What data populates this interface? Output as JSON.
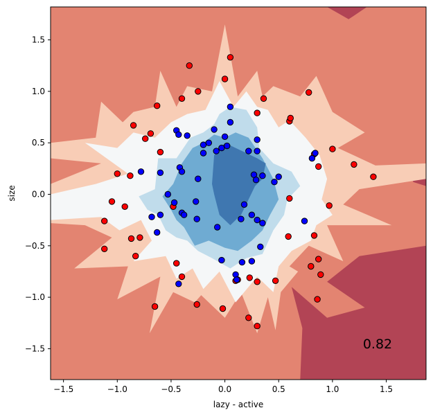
{
  "chart_data": {
    "type": "scatter",
    "title": "",
    "xlabel": "lazy - active",
    "ylabel": "size",
    "xlim": [
      -1.62,
      1.87
    ],
    "ylim": [
      -1.8,
      1.82
    ],
    "x_ticks": [
      -1.5,
      -1.0,
      -0.5,
      0.0,
      0.5,
      1.0,
      1.5
    ],
    "x_tick_labels": [
      "−1.5",
      "−1.0",
      "−0.5",
      "0.0",
      "0.5",
      "1.0",
      "1.5"
    ],
    "y_ticks": [
      -1.5,
      -1.0,
      -0.5,
      0.0,
      0.5,
      1.0,
      1.5
    ],
    "y_tick_labels": [
      "−1.5",
      "−1.0",
      "−0.5",
      "0.0",
      "0.5",
      "1.0",
      "1.5"
    ],
    "grid": false,
    "legend": "none",
    "score": "0.82",
    "colors": {
      "background_red": "#e38471",
      "mid_red": "#f8cdb6",
      "neutral": "#f5f7f8",
      "light_blue": "#c0dceb",
      "mid_blue": "#6fabd2",
      "dark_blue": "#3f77b0",
      "dark_red": "#b24455",
      "class_a": "#ff0000",
      "class_b": "#0000ff"
    },
    "regions": {
      "dark_red": [
        [
          [
            0.7,
            -1.8
          ],
          [
            0.72,
            -1.3
          ],
          [
            0.62,
            -0.9
          ],
          [
            0.95,
            -1.2
          ],
          [
            1.3,
            -1.1
          ],
          [
            0.95,
            -0.85
          ],
          [
            1.25,
            -0.6
          ],
          [
            1.87,
            -0.5
          ],
          [
            1.87,
            -1.8
          ]
        ],
        [
          [
            0.95,
            1.82
          ],
          [
            1.15,
            1.7
          ],
          [
            1.32,
            1.82
          ]
        ],
        [
          [
            1.72,
            0.25
          ],
          [
            1.87,
            0.2
          ],
          [
            1.87,
            0.08
          ],
          [
            1.75,
            0.12
          ]
        ]
      ],
      "mid_red": [
        [
          [
            -1.62,
            0.1
          ],
          [
            -1.62,
            -0.28
          ],
          [
            -1.3,
            -0.3
          ],
          [
            -1.05,
            -0.42
          ],
          [
            -1.4,
            -0.72
          ],
          [
            -0.9,
            -0.7
          ],
          [
            -1.0,
            -1.02
          ],
          [
            -0.6,
            -0.8
          ],
          [
            -0.7,
            -1.35
          ],
          [
            -0.48,
            -0.95
          ],
          [
            -0.28,
            -1.05
          ],
          [
            -0.22,
            -0.98
          ],
          [
            0.0,
            -1.2
          ],
          [
            0.15,
            -0.95
          ],
          [
            0.3,
            -1.35
          ],
          [
            0.4,
            -1.0
          ],
          [
            0.47,
            -1.32
          ],
          [
            0.52,
            -0.95
          ],
          [
            0.68,
            -0.75
          ],
          [
            0.6,
            -0.7
          ],
          [
            0.78,
            -0.5
          ],
          [
            1.1,
            -0.65
          ],
          [
            0.95,
            -0.3
          ],
          [
            1.55,
            -0.3
          ],
          [
            1.1,
            -0.1
          ],
          [
            1.25,
            0.05
          ],
          [
            1.87,
            0.15
          ],
          [
            1.87,
            0.3
          ],
          [
            1.4,
            0.28
          ],
          [
            1.05,
            0.45
          ],
          [
            1.3,
            0.6
          ],
          [
            1.0,
            0.8
          ],
          [
            0.85,
            1.15
          ],
          [
            0.7,
            0.95
          ],
          [
            0.45,
            1.05
          ],
          [
            0.35,
            0.95
          ],
          [
            0.3,
            1.2
          ],
          [
            0.12,
            0.95
          ],
          [
            0.0,
            1.65
          ],
          [
            -0.12,
            1.0
          ],
          [
            -0.35,
            1.05
          ],
          [
            -0.45,
            0.85
          ],
          [
            -0.6,
            1.2
          ],
          [
            -0.65,
            0.85
          ],
          [
            -0.85,
            0.8
          ],
          [
            -0.95,
            0.7
          ],
          [
            -1.15,
            0.9
          ],
          [
            -1.2,
            0.55
          ],
          [
            -1.62,
            0.5
          ],
          [
            -1.62,
            0.35
          ],
          [
            -1.15,
            0.3
          ]
        ]
      ],
      "neutral": [
        [
          [
            -1.62,
            0.0
          ],
          [
            -1.62,
            -0.25
          ],
          [
            -1.15,
            -0.22
          ],
          [
            -0.98,
            -0.35
          ],
          [
            -0.78,
            -0.25
          ],
          [
            -0.68,
            -0.45
          ],
          [
            -0.85,
            -0.65
          ],
          [
            -0.55,
            -0.6
          ],
          [
            -0.45,
            -0.82
          ],
          [
            -0.3,
            -0.72
          ],
          [
            -0.2,
            -0.92
          ],
          [
            -0.05,
            -0.75
          ],
          [
            0.1,
            -1.05
          ],
          [
            0.3,
            -0.8
          ],
          [
            0.45,
            -0.95
          ],
          [
            0.5,
            -0.7
          ],
          [
            0.62,
            -0.55
          ],
          [
            0.8,
            -0.45
          ],
          [
            0.85,
            -0.3
          ],
          [
            1.0,
            -0.2
          ],
          [
            0.9,
            -0.05
          ],
          [
            0.95,
            0.15
          ],
          [
            0.88,
            0.38
          ],
          [
            0.75,
            0.55
          ],
          [
            0.6,
            0.72
          ],
          [
            0.5,
            0.65
          ],
          [
            0.4,
            0.82
          ],
          [
            0.3,
            0.85
          ],
          [
            0.2,
            1.0
          ],
          [
            0.08,
            0.85
          ],
          [
            -0.05,
            1.1
          ],
          [
            -0.18,
            0.82
          ],
          [
            -0.35,
            0.78
          ],
          [
            -0.5,
            0.7
          ],
          [
            -0.65,
            0.55
          ],
          [
            -0.85,
            0.6
          ],
          [
            -1.0,
            0.45
          ],
          [
            -1.3,
            0.5
          ],
          [
            -0.9,
            0.2
          ],
          [
            -1.2,
            0.1
          ]
        ]
      ],
      "light_blue": [
        [
          [
            -0.8,
            -0.02
          ],
          [
            -0.65,
            0.05
          ],
          [
            -0.62,
            0.35
          ],
          [
            -0.45,
            0.35
          ],
          [
            -0.32,
            0.55
          ],
          [
            -0.2,
            0.6
          ],
          [
            -0.1,
            0.68
          ],
          [
            -0.05,
            0.78
          ],
          [
            0.05,
            0.85
          ],
          [
            0.2,
            0.82
          ],
          [
            0.3,
            0.65
          ],
          [
            0.32,
            0.45
          ],
          [
            0.45,
            0.3
          ],
          [
            0.62,
            0.22
          ],
          [
            0.7,
            0.08
          ],
          [
            0.58,
            -0.05
          ],
          [
            0.55,
            -0.2
          ],
          [
            0.45,
            -0.35
          ],
          [
            0.35,
            -0.58
          ],
          [
            0.2,
            -0.62
          ],
          [
            0.05,
            -0.72
          ],
          [
            -0.12,
            -0.62
          ],
          [
            -0.25,
            -0.55
          ],
          [
            -0.35,
            -0.45
          ],
          [
            -0.45,
            -0.42
          ],
          [
            -0.55,
            -0.35
          ],
          [
            -0.62,
            -0.2
          ],
          [
            -0.72,
            -0.15
          ]
        ]
      ],
      "mid_blue": [
        [
          [
            -0.58,
            -0.02
          ],
          [
            -0.48,
            0.1
          ],
          [
            -0.4,
            0.3
          ],
          [
            -0.3,
            0.45
          ],
          [
            -0.2,
            0.5
          ],
          [
            -0.1,
            0.58
          ],
          [
            0.0,
            0.55
          ],
          [
            0.1,
            0.6
          ],
          [
            0.22,
            0.55
          ],
          [
            0.35,
            0.35
          ],
          [
            0.45,
            0.15
          ],
          [
            0.5,
            -0.05
          ],
          [
            0.42,
            -0.2
          ],
          [
            0.35,
            -0.35
          ],
          [
            0.25,
            -0.45
          ],
          [
            0.12,
            -0.55
          ],
          [
            0.0,
            -0.52
          ],
          [
            -0.15,
            -0.45
          ],
          [
            -0.28,
            -0.5
          ],
          [
            -0.38,
            -0.32
          ],
          [
            -0.45,
            -0.25
          ],
          [
            -0.5,
            -0.15
          ]
        ]
      ],
      "dark_blue": [
        [
          [
            -0.12,
            0.1
          ],
          [
            -0.1,
            0.38
          ],
          [
            0.0,
            0.5
          ],
          [
            0.1,
            0.45
          ],
          [
            0.2,
            0.4
          ],
          [
            0.3,
            0.35
          ],
          [
            0.38,
            0.3
          ],
          [
            0.35,
            0.15
          ],
          [
            0.28,
            0.08
          ],
          [
            0.22,
            -0.05
          ],
          [
            0.15,
            -0.2
          ],
          [
            0.05,
            -0.3
          ],
          [
            -0.05,
            -0.2
          ],
          [
            -0.1,
            0.0
          ]
        ]
      ]
    },
    "series": [
      {
        "class": "a",
        "points": [
          [
            0.05,
            1.33
          ],
          [
            -0.33,
            1.25
          ],
          [
            0.0,
            1.12
          ],
          [
            -0.25,
            1.0
          ],
          [
            -0.4,
            0.93
          ],
          [
            0.36,
            0.93
          ],
          [
            0.78,
            0.99
          ],
          [
            0.3,
            0.79
          ],
          [
            0.6,
            0.71
          ],
          [
            0.61,
            0.74
          ],
          [
            -0.63,
            0.86
          ],
          [
            -0.85,
            0.67
          ],
          [
            -0.69,
            0.59
          ],
          [
            -0.74,
            0.54
          ],
          [
            -0.6,
            0.41
          ],
          [
            0.83,
            0.39
          ],
          [
            1.0,
            0.44
          ],
          [
            1.2,
            0.29
          ],
          [
            1.38,
            0.17
          ],
          [
            -1.0,
            0.2
          ],
          [
            -0.88,
            0.18
          ],
          [
            -1.05,
            -0.07
          ],
          [
            -0.93,
            -0.12
          ],
          [
            -0.48,
            -0.12
          ],
          [
            0.6,
            -0.04
          ],
          [
            0.97,
            -0.11
          ],
          [
            0.87,
            0.27
          ],
          [
            -1.12,
            -0.26
          ],
          [
            -1.12,
            -0.53
          ],
          [
            -0.87,
            -0.43
          ],
          [
            -0.79,
            -0.42
          ],
          [
            0.59,
            -0.41
          ],
          [
            0.83,
            -0.4
          ],
          [
            -0.83,
            -0.6
          ],
          [
            -0.45,
            -0.67
          ],
          [
            0.87,
            -0.63
          ],
          [
            0.8,
            -0.7
          ],
          [
            0.89,
            -0.78
          ],
          [
            -0.4,
            -0.8
          ],
          [
            0.1,
            -0.84
          ],
          [
            0.12,
            -0.83
          ],
          [
            0.23,
            -0.81
          ],
          [
            0.3,
            -0.85
          ],
          [
            0.47,
            -0.84
          ],
          [
            0.86,
            -1.02
          ],
          [
            -0.65,
            -1.09
          ],
          [
            -0.26,
            -1.07
          ],
          [
            -0.02,
            -1.11
          ],
          [
            0.22,
            -1.2
          ],
          [
            0.3,
            -1.28
          ]
        ]
      },
      {
        "class": "b",
        "points": [
          [
            0.05,
            0.85
          ],
          [
            0.05,
            0.7
          ],
          [
            -0.35,
            0.57
          ],
          [
            -0.45,
            0.62
          ],
          [
            -0.43,
            0.58
          ],
          [
            -0.1,
            0.63
          ],
          [
            -0.15,
            0.5
          ],
          [
            -0.08,
            0.42
          ],
          [
            -0.2,
            0.48
          ],
          [
            -0.03,
            0.45
          ],
          [
            0.02,
            0.47
          ],
          [
            0.0,
            0.56
          ],
          [
            0.22,
            0.42
          ],
          [
            0.3,
            0.42
          ],
          [
            0.3,
            0.53
          ],
          [
            0.84,
            0.4
          ],
          [
            0.81,
            0.35
          ],
          [
            -0.78,
            0.22
          ],
          [
            -0.6,
            0.21
          ],
          [
            -0.42,
            0.26
          ],
          [
            -0.4,
            0.22
          ],
          [
            -0.2,
            0.4
          ],
          [
            -0.25,
            0.15
          ],
          [
            0.27,
            0.19
          ],
          [
            0.35,
            0.18
          ],
          [
            0.29,
            0.14
          ],
          [
            0.5,
            0.17
          ],
          [
            0.46,
            0.12
          ],
          [
            -0.53,
            0.0
          ],
          [
            -0.47,
            -0.08
          ],
          [
            -0.6,
            -0.2
          ],
          [
            -0.68,
            -0.22
          ],
          [
            -0.4,
            -0.18
          ],
          [
            -0.38,
            -0.2
          ],
          [
            -0.27,
            -0.07
          ],
          [
            -0.26,
            -0.24
          ],
          [
            0.18,
            -0.1
          ],
          [
            0.25,
            -0.2
          ],
          [
            0.15,
            -0.24
          ],
          [
            0.3,
            -0.25
          ],
          [
            0.35,
            -0.28
          ],
          [
            0.74,
            -0.26
          ],
          [
            -0.63,
            -0.37
          ],
          [
            -0.07,
            -0.32
          ],
          [
            0.33,
            -0.51
          ],
          [
            0.16,
            -0.66
          ],
          [
            0.25,
            -0.65
          ],
          [
            -0.03,
            -0.64
          ],
          [
            0.1,
            -0.78
          ],
          [
            0.11,
            -0.83
          ],
          [
            -0.43,
            -0.87
          ]
        ]
      }
    ]
  }
}
